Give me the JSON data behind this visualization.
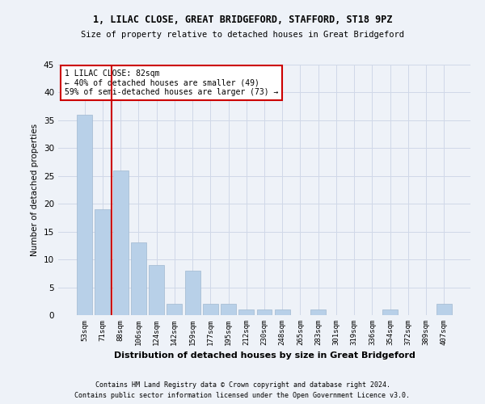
{
  "title1": "1, LILAC CLOSE, GREAT BRIDGEFORD, STAFFORD, ST18 9PZ",
  "title2": "Size of property relative to detached houses in Great Bridgeford",
  "xlabel": "Distribution of detached houses by size in Great Bridgeford",
  "ylabel": "Number of detached properties",
  "categories": [
    "53sqm",
    "71sqm",
    "88sqm",
    "106sqm",
    "124sqm",
    "142sqm",
    "159sqm",
    "177sqm",
    "195sqm",
    "212sqm",
    "230sqm",
    "248sqm",
    "265sqm",
    "283sqm",
    "301sqm",
    "319sqm",
    "336sqm",
    "354sqm",
    "372sqm",
    "389sqm",
    "407sqm"
  ],
  "values": [
    36,
    19,
    26,
    13,
    9,
    2,
    8,
    2,
    2,
    1,
    1,
    1,
    0,
    1,
    0,
    0,
    0,
    1,
    0,
    0,
    2
  ],
  "bar_color": "#b8d0e8",
  "bar_edgecolor": "#a0b8d0",
  "annotation_line1": "1 LILAC CLOSE: 82sqm",
  "annotation_line2": "← 40% of detached houses are smaller (49)",
  "annotation_line3": "59% of semi-detached houses are larger (73) →",
  "annotation_box_color": "#ffffff",
  "annotation_box_edgecolor": "#cc0000",
  "vline_color": "#cc0000",
  "vline_x": 1.5,
  "ylim": [
    0,
    45
  ],
  "yticks": [
    0,
    5,
    10,
    15,
    20,
    25,
    30,
    35,
    40,
    45
  ],
  "grid_color": "#d0d8e8",
  "background_color": "#eef2f8",
  "footer1": "Contains HM Land Registry data © Crown copyright and database right 2024.",
  "footer2": "Contains public sector information licensed under the Open Government Licence v3.0."
}
